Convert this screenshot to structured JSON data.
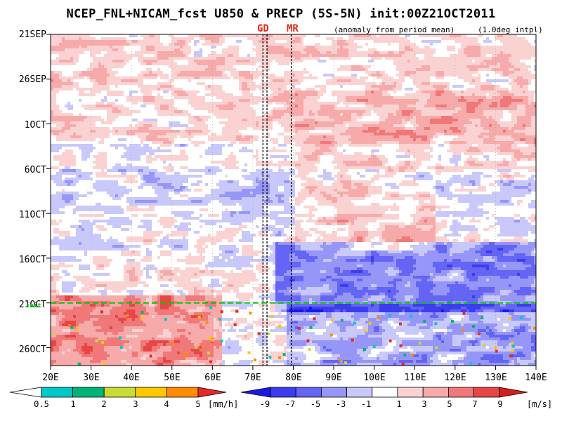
{
  "chart_data": {
    "type": "heatmap",
    "title": "NCEP_FNL+NICAM_fcst U850 & PRECP (5S-5N) init:00Z21OCT2011",
    "subtitle_left": "(anomaly from period mean)",
    "subtitle_right": "(1.0deg intpl)",
    "x_ticks": [
      "20E",
      "30E",
      "40E",
      "50E",
      "60E",
      "70E",
      "80E",
      "90E",
      "100E",
      "110E",
      "120E",
      "130E",
      "140E"
    ],
    "x_range": [
      20,
      140
    ],
    "y_ticks": [
      "21SEP",
      "26SEP",
      "1OCT",
      "6OCT",
      "11OCT",
      "16OCT",
      "21OCT",
      "26OCT"
    ],
    "y_range": [
      "21SEP2011",
      "28OCT2011"
    ],
    "init_line": {
      "date": "21OCT",
      "label": "init",
      "color": "#00c800"
    },
    "station_markers": [
      {
        "label": "GD",
        "lon": [
          72.5,
          73.5
        ]
      },
      {
        "label": "MR",
        "lon": [
          79.5
        ]
      }
    ],
    "u850_colorbar": {
      "levels": [
        "-9",
        "-7",
        "-5",
        "-3",
        "-1",
        "1",
        "3",
        "5",
        "7",
        "9"
      ],
      "unit": "[m/s]",
      "colors": [
        "#1a1ae6",
        "#3c3cf0",
        "#6464f5",
        "#9696f8",
        "#c8c8fb",
        "#ffffff",
        "#fbd2d2",
        "#f7aaaa",
        "#f07878",
        "#e84646",
        "#d71e1e"
      ]
    },
    "precp_colorbar": {
      "levels": [
        "0.5",
        "1",
        "2",
        "3",
        "4",
        "5"
      ],
      "unit": "[mm/h]",
      "colors": [
        "#ffffff",
        "#00c8c8",
        "#00b478",
        "#c8dc32",
        "#ffc800",
        "#ff8c00",
        "#e62828"
      ]
    }
  }
}
